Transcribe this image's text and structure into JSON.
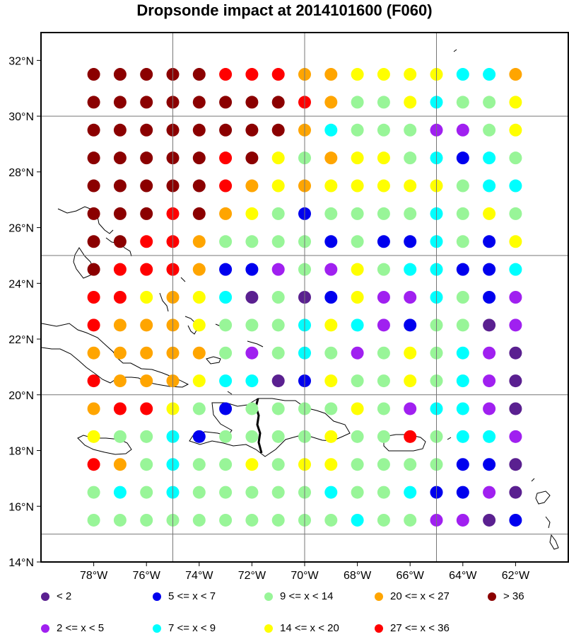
{
  "title": "Dropsonde impact at 2014101600 (F060)",
  "map": {
    "lon_range": [
      -80,
      -60
    ],
    "lat_range": [
      14,
      33
    ],
    "lat_ticks": [
      "32°N",
      "30°N",
      "28°N",
      "26°N",
      "24°N",
      "22°N",
      "20°N",
      "18°N",
      "16°N",
      "14°N"
    ],
    "lon_ticks": [
      "78°W",
      "76°W",
      "74°W",
      "72°W",
      "70°W",
      "68°W",
      "66°W",
      "64°W",
      "62°W"
    ],
    "grid_lons": [
      -75,
      -70,
      -65
    ],
    "grid_lats": [
      30,
      25,
      20,
      15
    ]
  },
  "legend": [
    {
      "label": "<  2",
      "color": "#5a2090"
    },
    {
      "label": "2 <= x <  5",
      "color": "#a020f0"
    },
    {
      "label": "5 <= x <  7",
      "color": "#0000ee"
    },
    {
      "label": "7 <= x <  9",
      "color": "#00ffff"
    },
    {
      "label": "9 <= x < 14",
      "color": "#98f598"
    },
    {
      "label": "14 <= x < 20",
      "color": "#ffff00"
    },
    {
      "label": "20 <= x < 27",
      "color": "#ffa500"
    },
    {
      "label": "27 <= x < 36",
      "color": "#ff0000"
    },
    {
      "label": "> 36",
      "color": "#8b0000"
    }
  ],
  "chart_data": {
    "type": "scatter",
    "title": "Dropsonde impact at 2014101600 (F060)",
    "lons": [
      -78,
      -77,
      -76,
      -75,
      -74,
      -73,
      -72,
      -71,
      -70,
      -69,
      -68,
      -67,
      -66,
      -65,
      -64,
      -63,
      -62
    ],
    "lats": [
      31.5,
      30.5,
      29.5,
      28.5,
      27.5,
      26.5,
      25.5,
      24.5,
      23.5,
      22.5,
      21.5,
      20.5,
      19.5,
      18.5,
      17.5,
      16.5,
      15.5
    ],
    "categories": [
      "< 2",
      "2 <= x < 5",
      "5 <= x < 7",
      "7 <= x < 9",
      "9 <= x < 14",
      "14 <= x < 20",
      "20 <= x < 27",
      "27 <= x < 36",
      "> 36"
    ],
    "category_index_grid": [
      [
        8,
        8,
        8,
        8,
        8,
        7,
        7,
        7,
        6,
        6,
        5,
        5,
        5,
        5,
        3,
        3,
        6
      ],
      [
        8,
        8,
        8,
        8,
        8,
        8,
        8,
        8,
        7,
        6,
        4,
        4,
        5,
        3,
        4,
        4,
        5
      ],
      [
        8,
        8,
        8,
        8,
        8,
        8,
        8,
        8,
        6,
        3,
        4,
        4,
        4,
        1,
        1,
        4,
        5
      ],
      [
        8,
        8,
        8,
        8,
        8,
        7,
        8,
        5,
        4,
        6,
        5,
        5,
        4,
        3,
        2,
        3,
        4
      ],
      [
        8,
        8,
        8,
        8,
        8,
        7,
        6,
        5,
        6,
        5,
        5,
        5,
        5,
        5,
        4,
        3,
        3
      ],
      [
        8,
        8,
        8,
        7,
        8,
        6,
        5,
        4,
        2,
        4,
        4,
        4,
        4,
        3,
        4,
        5,
        4
      ],
      [
        8,
        8,
        7,
        7,
        6,
        4,
        4,
        4,
        4,
        2,
        4,
        2,
        2,
        3,
        4,
        2,
        5
      ],
      [
        8,
        7,
        7,
        7,
        6,
        2,
        2,
        1,
        4,
        1,
        5,
        4,
        3,
        3,
        2,
        2,
        3
      ],
      [
        7,
        7,
        5,
        6,
        5,
        3,
        0,
        4,
        0,
        2,
        5,
        1,
        1,
        3,
        4,
        2,
        1
      ],
      [
        7,
        6,
        6,
        6,
        5,
        4,
        4,
        4,
        3,
        5,
        3,
        1,
        2,
        4,
        4,
        0,
        1
      ],
      [
        6,
        6,
        6,
        6,
        6,
        4,
        1,
        4,
        3,
        4,
        1,
        4,
        5,
        4,
        3,
        1,
        0
      ],
      [
        7,
        6,
        6,
        6,
        5,
        3,
        3,
        0,
        2,
        5,
        4,
        4,
        5,
        4,
        3,
        1,
        0
      ],
      [
        6,
        7,
        7,
        5,
        4,
        2,
        4,
        4,
        4,
        4,
        5,
        4,
        1,
        3,
        3,
        1,
        0
      ],
      [
        5,
        4,
        4,
        3,
        2,
        4,
        4,
        4,
        4,
        5,
        4,
        4,
        7,
        4,
        3,
        3,
        1
      ],
      [
        7,
        6,
        4,
        3,
        4,
        4,
        5,
        4,
        5,
        5,
        4,
        4,
        4,
        4,
        2,
        2,
        0
      ],
      [
        4,
        3,
        4,
        3,
        4,
        4,
        4,
        4,
        4,
        3,
        4,
        4,
        3,
        2,
        2,
        1,
        0
      ],
      [
        4,
        4,
        4,
        4,
        4,
        4,
        4,
        4,
        4,
        4,
        3,
        4,
        4,
        1,
        1,
        0,
        2
      ]
    ]
  }
}
